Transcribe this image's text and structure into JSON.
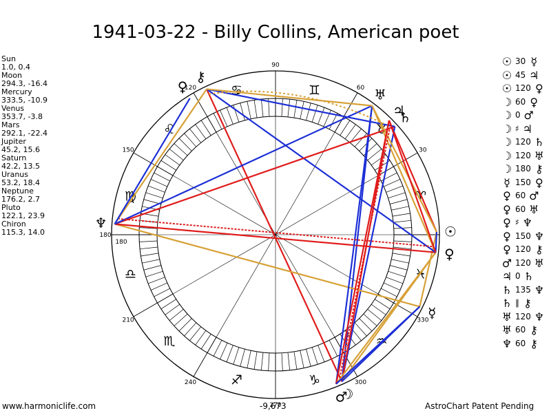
{
  "title": "1941-03-22 - Billy Collins, American poet",
  "planets": [
    {
      "name": "Sun",
      "value": "1.0, 0.4",
      "glyph": "☉",
      "lon": 1.0
    },
    {
      "name": "Moon",
      "value": "294.3, -16.4",
      "glyph": "☽",
      "lon": 294.3
    },
    {
      "name": "Mercury",
      "value": "333.5, -10.9",
      "glyph": "☿",
      "lon": 333.5
    },
    {
      "name": "Venus",
      "value": "353.7, -3.8",
      "glyph": "♀",
      "lon": 353.7
    },
    {
      "name": "Mars",
      "value": "292.1, -22.4",
      "glyph": "♂",
      "lon": 292.1
    },
    {
      "name": "Jupiter",
      "value": "45.2, 15.6",
      "glyph": "♃",
      "lon": 45.2
    },
    {
      "name": "Saturn",
      "value": "42.2, 13.5",
      "glyph": "♄",
      "lon": 42.2
    },
    {
      "name": "Uranus",
      "value": "53.2, 18.4",
      "glyph": "♅",
      "lon": 53.2
    },
    {
      "name": "Neptune",
      "value": "176.2, 2.7",
      "glyph": "♆",
      "lon": 176.2
    },
    {
      "name": "Pluto",
      "value": "122.1, 23.9",
      "glyph": "♀",
      "lon": 122.1
    },
    {
      "name": "Chiron",
      "value": "115.3, 14.0",
      "glyph": "⚷",
      "lon": 115.3
    }
  ],
  "zodiac_signs": [
    "♈",
    "♉",
    "♊",
    "♋",
    "♌",
    "♍",
    "♎",
    "♏",
    "♐",
    "♑",
    "♒",
    "♓"
  ],
  "degree_labels": [
    "30",
    "60",
    "90",
    "120",
    "150",
    "180",
    "210",
    "240",
    "270",
    "300",
    "330"
  ],
  "aspects": [
    {
      "p1": "☉",
      "val": "30",
      "p2": "☿",
      "color": "#d7a137"
    },
    {
      "p1": "☉",
      "val": "45",
      "p2": "♃",
      "color": "#e01b1b"
    },
    {
      "p1": "☉",
      "val": "120",
      "p2": "♀",
      "color": "#1c2fd6"
    },
    {
      "p1": "☽",
      "val": "60",
      "p2": "♀",
      "color": "#d7a137"
    },
    {
      "p1": "☽",
      "val": "0",
      "p2": "♂",
      "color": "#e01b1b"
    },
    {
      "p1": "☽",
      "val": "♯",
      "p2": "♃",
      "color": "#e01b1b"
    },
    {
      "p1": "☽",
      "val": "120",
      "p2": "♄",
      "color": "#1c2fd6"
    },
    {
      "p1": "☽",
      "val": "120",
      "p2": "♅",
      "color": "#1c2fd6"
    },
    {
      "p1": "☽",
      "val": "180",
      "p2": "⚷",
      "color": "#e01b1b"
    },
    {
      "p1": "☿",
      "val": "150",
      "p2": "♀",
      "color": "#d7a137"
    },
    {
      "p1": "♀",
      "val": "60",
      "p2": "♂",
      "color": "#d7a137"
    },
    {
      "p1": "♀",
      "val": "60",
      "p2": "♅",
      "color": "#d7a137"
    },
    {
      "p1": "♀",
      "val": "♯",
      "p2": "♆",
      "color": "#e01b1b"
    },
    {
      "p1": "♀",
      "val": "150",
      "p2": "♆",
      "color": "#d7a137"
    },
    {
      "p1": "♀",
      "val": "120",
      "p2": "⚷",
      "color": "#1c2fd6"
    },
    {
      "p1": "♂",
      "val": "120",
      "p2": "♅",
      "color": "#1c2fd6"
    },
    {
      "p1": "♃",
      "val": "0",
      "p2": "♄",
      "color": "#e01b1b"
    },
    {
      "p1": "♄",
      "val": "135",
      "p2": "♆",
      "color": "#e01b1b"
    },
    {
      "p1": "♄",
      "val": "∥",
      "p2": "⚷",
      "color": "#1c2fd6"
    },
    {
      "p1": "♅",
      "val": "120",
      "p2": "♆",
      "color": "#1c2fd6"
    },
    {
      "p1": "♅",
      "val": "60",
      "p2": "⚷",
      "color": "#d7a137"
    },
    {
      "p1": "♆",
      "val": "60",
      "p2": "⚷",
      "color": "#d7a137"
    }
  ],
  "colors": {
    "red": "#e01b1b",
    "blue": "#1c2fd6",
    "gold": "#d7a137"
  },
  "footer": {
    "left": "www.harmoniclife.com",
    "center": "-9,673",
    "right": "AstroChart Patent Pending"
  }
}
